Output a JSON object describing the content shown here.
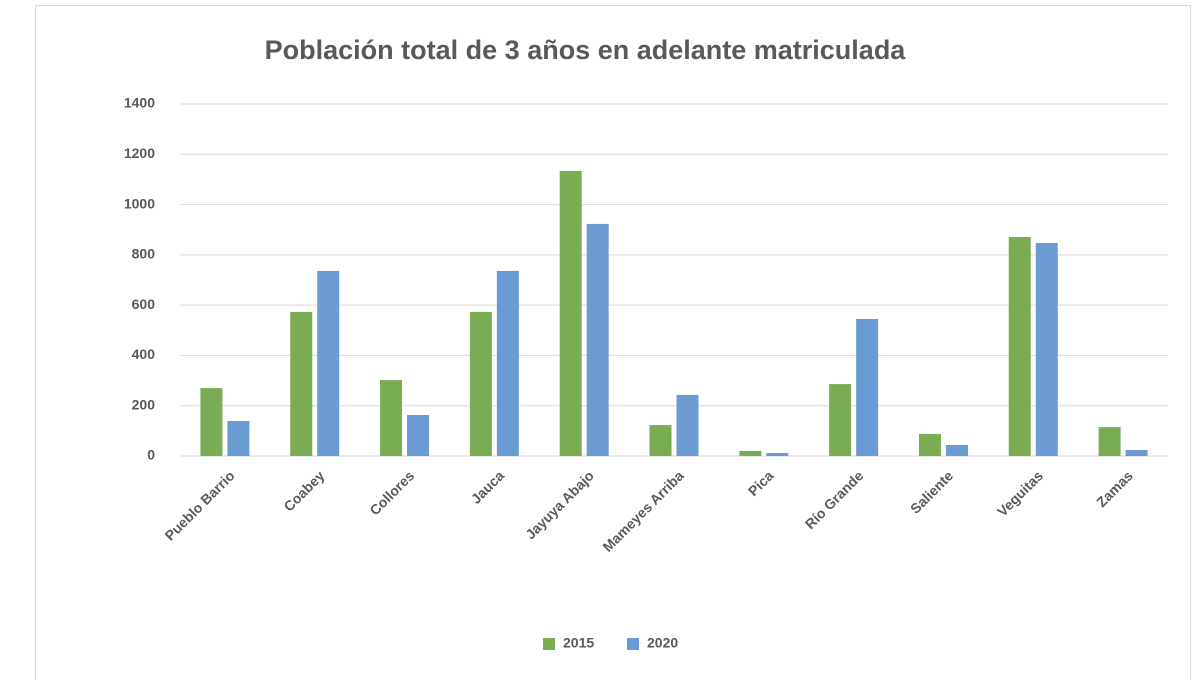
{
  "chart_data": {
    "type": "bar",
    "title": "Población total de 3 años en adelante matriculada",
    "categories": [
      "Pueblo Barrio",
      "Coabey",
      "Collores",
      "Jauca",
      "Jayuya Abajo",
      "Mameyes Arriba",
      "Pica",
      "Río Grande",
      "Saliente",
      "Veguitas",
      "Zamas"
    ],
    "series": [
      {
        "name": "2015",
        "color": "#7aac53",
        "values": [
          270,
          573,
          302,
          573,
          1134,
          123,
          20,
          286,
          88,
          871,
          115
        ]
      },
      {
        "name": "2020",
        "color": "#6a9bd3",
        "values": [
          139,
          736,
          163,
          736,
          923,
          243,
          12,
          545,
          44,
          847,
          24
        ]
      }
    ],
    "ylim": [
      0,
      1400
    ],
    "yticks": [
      0,
      200,
      400,
      600,
      800,
      1000,
      1200,
      1400
    ],
    "grid": true,
    "legend": "bottom"
  }
}
